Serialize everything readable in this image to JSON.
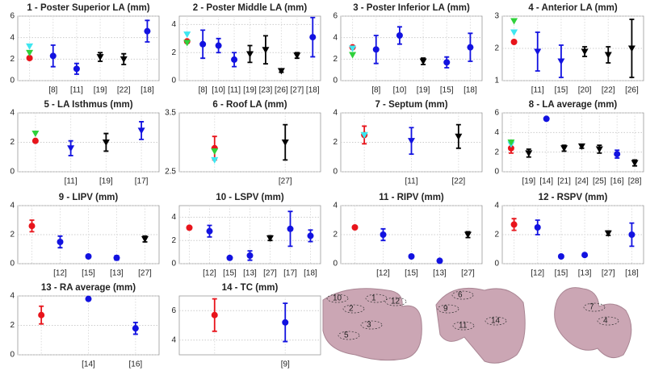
{
  "chart_data": [
    {
      "type": "errorbar",
      "title": "1 - Poster Superior LA (mm)",
      "categories": [
        null,
        "[8]",
        "[11]",
        "[19]",
        "[22]",
        "[18]"
      ],
      "ylim": [
        0,
        6
      ],
      "yticks": [
        0,
        2,
        4,
        6
      ],
      "grid": true,
      "series": [
        {
          "color": "#e8141b",
          "marker": "o",
          "values": [
            2.1,
            null,
            null,
            null,
            null,
            null
          ]
        },
        {
          "color": "#2fd13a",
          "marker": "v",
          "values": [
            2.6,
            null,
            null,
            null,
            null,
            null
          ]
        },
        {
          "color": "#3ee6f0",
          "marker": "v",
          "values": [
            3.2,
            null,
            null,
            null,
            null,
            null
          ]
        },
        {
          "color": "#1212e0",
          "marker": "o",
          "values": [
            null,
            2.3,
            1.1,
            null,
            null,
            4.6
          ],
          "errors": [
            null,
            1,
            0.5,
            null,
            null,
            1
          ]
        },
        {
          "color": "#000000",
          "marker": "v",
          "values": [
            null,
            null,
            null,
            2.2,
            2,
            null
          ],
          "errors": [
            null,
            null,
            null,
            0.4,
            0.5,
            null
          ]
        }
      ]
    },
    {
      "type": "errorbar",
      "title": "2 - Poster Middle LA (mm)",
      "categories": [
        null,
        "[8]",
        "[10]",
        "[11]",
        "[19]",
        "[23]",
        "[26]",
        "[27]",
        "[18]"
      ],
      "ylim": [
        0,
        4.6
      ],
      "yticks": [
        0,
        2,
        4
      ],
      "grid": true,
      "series": [
        {
          "color": "#e8141b",
          "marker": "o",
          "values": [
            2.8,
            null,
            null,
            null,
            null,
            null,
            null,
            null,
            null
          ]
        },
        {
          "color": "#2fd13a",
          "marker": "v",
          "values": [
            2.7,
            null,
            null,
            null,
            null,
            null,
            null,
            null,
            null
          ]
        },
        {
          "color": "#3ee6f0",
          "marker": "v",
          "values": [
            3.3,
            null,
            null,
            null,
            null,
            null,
            null,
            null,
            null
          ]
        },
        {
          "color": "#1212e0",
          "marker": "o",
          "values": [
            null,
            2.6,
            2.5,
            1.5,
            null,
            null,
            null,
            null,
            3.1
          ],
          "errors": [
            null,
            1,
            0.5,
            0.5,
            null,
            null,
            null,
            null,
            1.4
          ]
        },
        {
          "color": "#000000",
          "marker": "v",
          "values": [
            null,
            null,
            null,
            null,
            1.9,
            2.2,
            0.7,
            1.8,
            null
          ],
          "errors": [
            null,
            null,
            null,
            null,
            0.6,
            1,
            0.1,
            0.2,
            null
          ]
        }
      ]
    },
    {
      "type": "errorbar",
      "title": "3 - Poster Inferior LA (mm)",
      "categories": [
        null,
        "[8]",
        "[10]",
        "[19]",
        "[15]",
        "[18]"
      ],
      "ylim": [
        0,
        6
      ],
      "yticks": [
        0,
        2,
        4,
        6
      ],
      "grid": true,
      "series": [
        {
          "color": "#e8141b",
          "marker": "o",
          "values": [
            3.1,
            null,
            null,
            null,
            null,
            null
          ]
        },
        {
          "color": "#3ee6f0",
          "marker": "v",
          "values": [
            3,
            null,
            null,
            null,
            null,
            null
          ]
        },
        {
          "color": "#2fd13a",
          "marker": "v",
          "values": [
            2.4,
            null,
            null,
            null,
            null,
            null
          ]
        },
        {
          "color": "#1212e0",
          "marker": "o",
          "values": [
            null,
            2.9,
            4.2,
            null,
            1.7,
            3.1
          ],
          "errors": [
            null,
            1.3,
            0.8,
            null,
            0.5,
            1.3
          ]
        },
        {
          "color": "#000000",
          "marker": "v",
          "values": [
            null,
            null,
            null,
            1.8,
            null,
            null
          ],
          "errors": [
            null,
            null,
            null,
            0.3,
            null,
            null
          ]
        }
      ]
    },
    {
      "type": "errorbar",
      "title": "4 - Anterior LA (mm)",
      "categories": [
        null,
        "[11]",
        "[15]",
        "[20]",
        "[22]",
        "[26]"
      ],
      "ylim": [
        1,
        3
      ],
      "yticks": [
        1,
        2,
        3
      ],
      "grid": true,
      "series": [
        {
          "color": "#e8141b",
          "marker": "o",
          "values": [
            2.2,
            null,
            null,
            null,
            null,
            null
          ]
        },
        {
          "color": "#3ee6f0",
          "marker": "v",
          "values": [
            2.5,
            null,
            null,
            null,
            null,
            null
          ]
        },
        {
          "color": "#2fd13a",
          "marker": "v",
          "values": [
            2.85,
            null,
            null,
            null,
            null,
            null
          ]
        },
        {
          "color": "#1212e0",
          "marker": "v",
          "values": [
            null,
            1.9,
            1.6,
            null,
            null,
            null
          ],
          "errors": [
            null,
            0.6,
            0.5,
            null,
            null,
            null
          ]
        },
        {
          "color": "#000000",
          "marker": "v",
          "values": [
            null,
            null,
            null,
            1.9,
            1.8,
            2
          ],
          "errors": [
            null,
            null,
            null,
            0.15,
            0.25,
            0.9
          ]
        }
      ]
    },
    {
      "type": "errorbar",
      "title": "5 - LA Isthmus (mm)",
      "categories": [
        null,
        "[11]",
        "[19]",
        "[17]"
      ],
      "ylim": [
        0,
        4
      ],
      "yticks": [
        0,
        2,
        4
      ],
      "grid": true,
      "series": [
        {
          "color": "#e8141b",
          "marker": "o",
          "values": [
            2.1,
            null,
            null,
            null
          ]
        },
        {
          "color": "#2fd13a",
          "marker": "v",
          "values": [
            2.6,
            null,
            null,
            null
          ]
        },
        {
          "color": "#1212e0",
          "marker": "v",
          "values": [
            null,
            1.6,
            null,
            2.8
          ],
          "errors": [
            null,
            0.5,
            null,
            0.6
          ]
        },
        {
          "color": "#000000",
          "marker": "v",
          "values": [
            null,
            null,
            2,
            null
          ],
          "errors": [
            null,
            null,
            0.6,
            null
          ]
        }
      ]
    },
    {
      "type": "errorbar",
      "title": "6 - Roof LA (mm)",
      "categories": [
        null,
        "[27]"
      ],
      "ylim": [
        2.5,
        3.5
      ],
      "yticks": [
        2.5,
        3.5
      ],
      "grid": true,
      "series": [
        {
          "color": "#e8141b",
          "marker": "o",
          "values": [
            2.9,
            null
          ],
          "errors": [
            0.2,
            null
          ]
        },
        {
          "color": "#2fd13a",
          "marker": "v",
          "values": [
            2.85,
            null
          ]
        },
        {
          "color": "#3ee6f0",
          "marker": "v",
          "values": [
            2.7,
            null
          ]
        },
        {
          "color": "#000000",
          "marker": "v",
          "values": [
            null,
            3
          ],
          "errors": [
            null,
            0.3
          ]
        }
      ]
    },
    {
      "type": "errorbar",
      "title": "7 - Septum (mm)",
      "categories": [
        null,
        "[11]",
        "[22]"
      ],
      "ylim": [
        0,
        4
      ],
      "yticks": [
        0,
        2,
        4
      ],
      "grid": true,
      "series": [
        {
          "color": "#e8141b",
          "marker": "o",
          "values": [
            2.5,
            null,
            null
          ],
          "errors": [
            0.6,
            null,
            null
          ]
        },
        {
          "color": "#2fd13a",
          "marker": "v",
          "values": [
            2.5,
            null,
            null
          ]
        },
        {
          "color": "#3ee6f0",
          "marker": "v",
          "values": [
            2.5,
            null,
            null
          ]
        },
        {
          "color": "#1212e0",
          "marker": "v",
          "values": [
            null,
            2.1,
            null
          ],
          "errors": [
            null,
            0.9,
            null
          ]
        },
        {
          "color": "#000000",
          "marker": "v",
          "values": [
            null,
            null,
            2.4
          ],
          "errors": [
            null,
            null,
            0.8
          ]
        }
      ]
    },
    {
      "type": "errorbar",
      "title": "8 - LA average (mm)",
      "categories": [
        null,
        "[19]",
        "[14]",
        "[21]",
        "[24]",
        "[25]",
        "[16]",
        "[28]"
      ],
      "ylim": [
        0,
        6
      ],
      "yticks": [
        0,
        2,
        4,
        6
      ],
      "grid": true,
      "series": [
        {
          "color": "#e8141b",
          "marker": "o",
          "values": [
            2.4,
            null,
            null,
            null,
            null,
            null,
            null,
            null
          ],
          "errors": [
            0.5,
            null,
            null,
            null,
            null,
            null,
            null,
            null
          ]
        },
        {
          "color": "#3ee6f0",
          "marker": "v",
          "values": [
            2.8,
            null,
            null,
            null,
            null,
            null,
            null,
            null
          ]
        },
        {
          "color": "#2fd13a",
          "marker": "v",
          "values": [
            3,
            null,
            null,
            null,
            null,
            null,
            null,
            null
          ]
        },
        {
          "color": "#1212e0",
          "marker": "o",
          "values": [
            null,
            null,
            5.4,
            null,
            null,
            null,
            1.8,
            null
          ],
          "errors": [
            null,
            null,
            null,
            null,
            null,
            null,
            0.4,
            null
          ]
        },
        {
          "color": "#000000",
          "marker": "v",
          "values": [
            null,
            1.9,
            null,
            2.4,
            2.6,
            2.3,
            null,
            0.9
          ],
          "errors": [
            null,
            0.4,
            null,
            0.3,
            0.2,
            0.4,
            null,
            0.3
          ]
        }
      ]
    },
    {
      "type": "errorbar",
      "title": "9 - LIPV (mm)",
      "categories": [
        null,
        "[12]",
        "[15]",
        "[13]",
        "[27]"
      ],
      "ylim": [
        0,
        4
      ],
      "yticks": [
        0,
        2,
        4
      ],
      "grid": true,
      "series": [
        {
          "color": "#e8141b",
          "marker": "o",
          "values": [
            2.6,
            null,
            null,
            null,
            null
          ],
          "errors": [
            0.4,
            null,
            null,
            null,
            null
          ]
        },
        {
          "color": "#1212e0",
          "marker": "o",
          "values": [
            null,
            1.5,
            0.5,
            0.4,
            null
          ],
          "errors": [
            null,
            0.4,
            0.1,
            0.15,
            null
          ]
        },
        {
          "color": "#000000",
          "marker": "v",
          "values": [
            null,
            null,
            null,
            null,
            1.7
          ],
          "errors": [
            null,
            null,
            null,
            null,
            0.2
          ]
        }
      ]
    },
    {
      "type": "errorbar",
      "title": "10 - LSPV (mm)",
      "categories": [
        null,
        "[12]",
        "[15]",
        "[13]",
        "[27]",
        "[17]",
        "[18]"
      ],
      "ylim": [
        0,
        5
      ],
      "yticks": [
        0,
        2,
        4
      ],
      "grid": true,
      "series": [
        {
          "color": "#e8141b",
          "marker": "o",
          "values": [
            3.1,
            null,
            null,
            null,
            null,
            null,
            null
          ]
        },
        {
          "color": "#1212e0",
          "marker": "o",
          "values": [
            null,
            2.8,
            0.5,
            0.7,
            null,
            3,
            2.4
          ],
          "errors": [
            null,
            0.5,
            0.1,
            0.4,
            null,
            1.5,
            0.5
          ]
        },
        {
          "color": "#000000",
          "marker": "v",
          "values": [
            null,
            null,
            null,
            null,
            2.2,
            null,
            null
          ],
          "errors": [
            null,
            null,
            null,
            null,
            0.2,
            null,
            null
          ]
        }
      ]
    },
    {
      "type": "errorbar",
      "title": "11 - RIPV (mm)",
      "categories": [
        null,
        "[12]",
        "[15]",
        "[13]",
        "[27]"
      ],
      "ylim": [
        0,
        4
      ],
      "yticks": [
        0,
        2,
        4
      ],
      "grid": true,
      "series": [
        {
          "color": "#e8141b",
          "marker": "o",
          "values": [
            2.5,
            null,
            null,
            null,
            null
          ]
        },
        {
          "color": "#1212e0",
          "marker": "o",
          "values": [
            null,
            2,
            0.5,
            0.2,
            null
          ],
          "errors": [
            null,
            0.4,
            0.1,
            0.1,
            null
          ]
        },
        {
          "color": "#000000",
          "marker": "v",
          "values": [
            null,
            null,
            null,
            null,
            2
          ],
          "errors": [
            null,
            null,
            null,
            null,
            0.2
          ]
        }
      ]
    },
    {
      "type": "errorbar",
      "title": "12 - RSPV (mm)",
      "categories": [
        null,
        "[12]",
        "[15]",
        "[13]",
        "[27]",
        "[18]"
      ],
      "ylim": [
        0,
        4
      ],
      "yticks": [
        0,
        2,
        4
      ],
      "grid": true,
      "series": [
        {
          "color": "#e8141b",
          "marker": "o",
          "values": [
            2.7,
            null,
            null,
            null,
            null,
            null
          ],
          "errors": [
            0.4,
            null,
            null,
            null,
            null,
            null
          ]
        },
        {
          "color": "#1212e0",
          "marker": "o",
          "values": [
            null,
            2.5,
            0.5,
            0.6,
            null,
            2
          ],
          "errors": [
            null,
            0.5,
            0.1,
            0.1,
            null,
            0.8
          ]
        },
        {
          "color": "#000000",
          "marker": "v",
          "values": [
            null,
            null,
            null,
            null,
            2.1,
            null
          ],
          "errors": [
            null,
            null,
            null,
            null,
            0.15,
            null
          ]
        }
      ]
    },
    {
      "type": "errorbar",
      "title": "13 - RA average (mm)",
      "categories": [
        null,
        "[14]",
        "[16]"
      ],
      "ylim": [
        0,
        4
      ],
      "yticks": [
        0,
        2,
        4
      ],
      "grid": true,
      "series": [
        {
          "color": "#e8141b",
          "marker": "o",
          "values": [
            2.7,
            null,
            null
          ],
          "errors": [
            0.6,
            null,
            null
          ]
        },
        {
          "color": "#1212e0",
          "marker": "o",
          "values": [
            null,
            3.8,
            1.8
          ],
          "errors": [
            null,
            null,
            0.4
          ]
        }
      ]
    },
    {
      "type": "errorbar",
      "title": "14 - TC (mm)",
      "categories": [
        null,
        "[9]"
      ],
      "ylim": [
        3,
        7
      ],
      "yticks": [
        4,
        6
      ],
      "grid": true,
      "series": [
        {
          "color": "#e8141b",
          "marker": "o",
          "values": [
            5.7,
            null
          ],
          "errors": [
            1.1,
            null
          ]
        },
        {
          "color": "#1212e0",
          "marker": "o",
          "values": [
            null,
            5.2
          ],
          "errors": [
            null,
            1.3
          ]
        }
      ]
    }
  ],
  "anatomy": {
    "labels": [
      "10",
      "1",
      "2",
      "3",
      "5",
      "12",
      "6",
      "9",
      "11",
      "14",
      "7",
      "4"
    ]
  }
}
